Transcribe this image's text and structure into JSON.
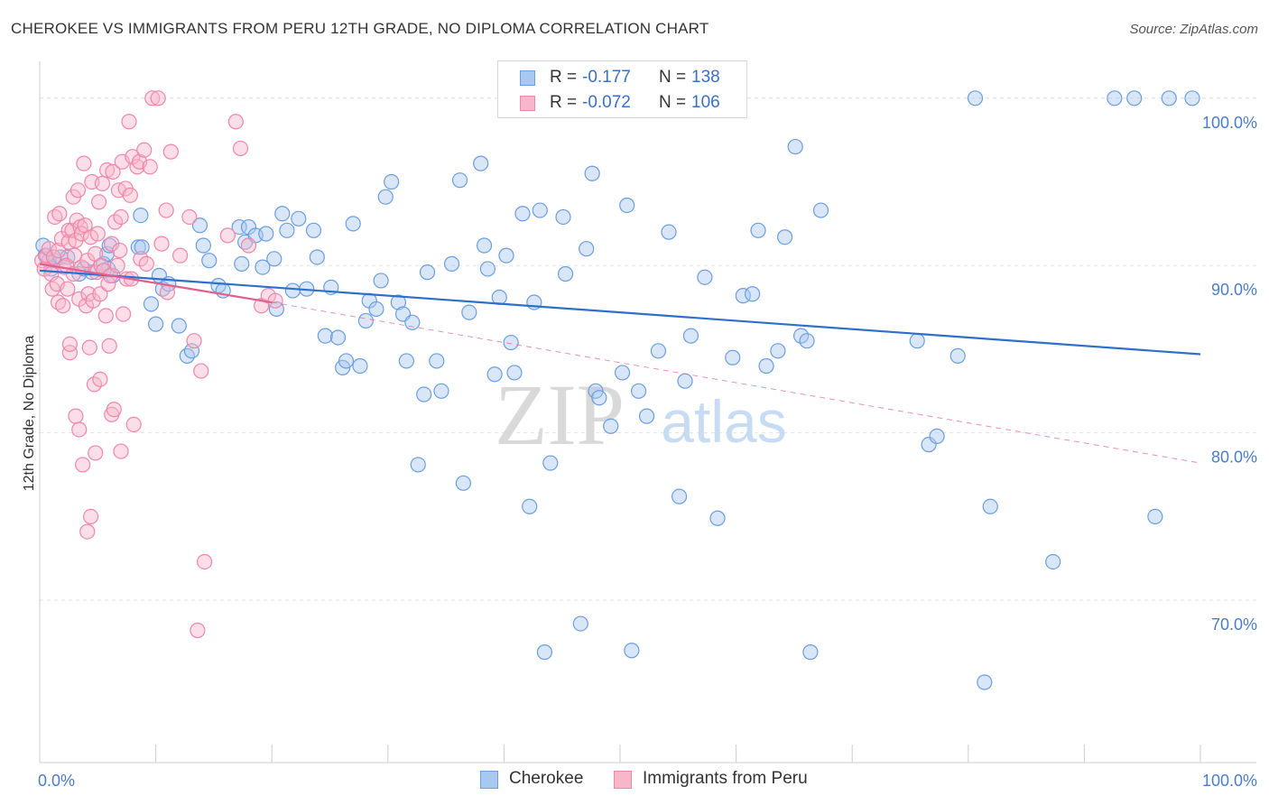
{
  "title": "CHEROKEE VS IMMIGRANTS FROM PERU 12TH GRADE, NO DIPLOMA CORRELATION CHART",
  "source": "Source: ZipAtlas.com",
  "watermark": {
    "zip": "ZIP",
    "atlas": "atlas"
  },
  "legend": {
    "rows": [
      {
        "r_label": "R =",
        "r_value": "-0.177",
        "n_label": "N =",
        "n_value": "138"
      },
      {
        "r_label": "R =",
        "r_value": "-0.072",
        "n_label": "N =",
        "n_value": "106"
      }
    ]
  },
  "bottom_legend": [
    "Cherokee",
    "Immigrants from Peru"
  ],
  "colors": {
    "cherokee_fill": "#a9c8f0",
    "cherokee_stroke": "#6a9ee0",
    "cherokee_line": "#2e6fcc",
    "peru_fill": "#f7b6ca",
    "peru_stroke": "#ef86a8",
    "peru_line": "#e0608d",
    "axis_text": "#4a7cc9",
    "grid": "#e3e3e3"
  },
  "chart_data": {
    "type": "scatter",
    "title": "CHEROKEE VS IMMIGRANTS FROM PERU 12TH GRADE, NO DIPLOMA CORRELATION CHART",
    "xlabel": "",
    "ylabel": "12th Grade, No Diploma",
    "xlim": [
      0,
      100
    ],
    "ylim": [
      60.3,
      102.2
    ],
    "x_tick_labels": [
      {
        "value": 0,
        "label": "0.0%"
      },
      {
        "value": 100,
        "label": "100.0%"
      }
    ],
    "y_ticks": [
      {
        "value": 70,
        "label": "70.0%"
      },
      {
        "value": 80,
        "label": "80.0%"
      },
      {
        "value": 90,
        "label": "90.0%"
      },
      {
        "value": 100,
        "label": "100.0%"
      }
    ],
    "series": [
      {
        "name": "Cherokee",
        "r": -0.177,
        "n": 138,
        "trend": {
          "x": [
            0,
            100
          ],
          "y": [
            89.7,
            84.7
          ]
        },
        "points": [
          [
            0.3,
            91.2
          ],
          [
            0.5,
            90.6
          ],
          [
            0.8,
            90.3
          ],
          [
            1.0,
            89.8
          ],
          [
            1.3,
            90.3
          ],
          [
            1.8,
            90.5
          ],
          [
            2.4,
            90.5
          ],
          [
            3.4,
            89.5
          ],
          [
            3.8,
            89.8
          ],
          [
            4.5,
            89.6
          ],
          [
            5.5,
            90.1
          ],
          [
            5.9,
            89.8
          ],
          [
            6.3,
            89.4
          ],
          [
            5.8,
            90.7
          ],
          [
            6.0,
            91.2
          ],
          [
            8.5,
            91.1
          ],
          [
            8.8,
            91.1
          ],
          [
            8.7,
            93.0
          ],
          [
            9.6,
            87.7
          ],
          [
            10.0,
            86.5
          ],
          [
            10.3,
            89.4
          ],
          [
            10.6,
            88.6
          ],
          [
            11.1,
            88.9
          ],
          [
            12.0,
            86.4
          ],
          [
            12.7,
            84.6
          ],
          [
            13.1,
            84.9
          ],
          [
            13.8,
            92.4
          ],
          [
            14.1,
            91.2
          ],
          [
            14.6,
            90.3
          ],
          [
            15.4,
            88.8
          ],
          [
            15.8,
            88.5
          ],
          [
            17.2,
            92.3
          ],
          [
            17.4,
            90.1
          ],
          [
            17.7,
            91.4
          ],
          [
            18.0,
            92.3
          ],
          [
            18.6,
            91.8
          ],
          [
            19.2,
            89.9
          ],
          [
            19.5,
            91.9
          ],
          [
            20.2,
            90.4
          ],
          [
            20.4,
            87.4
          ],
          [
            20.9,
            93.1
          ],
          [
            21.3,
            92.1
          ],
          [
            21.8,
            88.5
          ],
          [
            22.3,
            92.8
          ],
          [
            23.0,
            88.6
          ],
          [
            23.6,
            92.1
          ],
          [
            23.9,
            90.5
          ],
          [
            24.6,
            85.8
          ],
          [
            25.1,
            88.7
          ],
          [
            25.7,
            85.7
          ],
          [
            26.1,
            83.9
          ],
          [
            26.4,
            84.3
          ],
          [
            27.0,
            92.5
          ],
          [
            27.6,
            84.0
          ],
          [
            28.1,
            86.7
          ],
          [
            28.4,
            87.9
          ],
          [
            29.0,
            87.4
          ],
          [
            29.4,
            89.1
          ],
          [
            29.8,
            94.1
          ],
          [
            30.3,
            95.0
          ],
          [
            30.9,
            87.8
          ],
          [
            31.3,
            87.1
          ],
          [
            31.6,
            84.3
          ],
          [
            32.1,
            86.6
          ],
          [
            32.6,
            78.1
          ],
          [
            33.1,
            82.3
          ],
          [
            33.4,
            89.6
          ],
          [
            34.2,
            84.3
          ],
          [
            34.6,
            82.5
          ],
          [
            35.5,
            90.1
          ],
          [
            36.2,
            95.1
          ],
          [
            36.5,
            77.0
          ],
          [
            37.0,
            87.2
          ],
          [
            38.0,
            96.1
          ],
          [
            38.3,
            91.2
          ],
          [
            38.6,
            89.8
          ],
          [
            39.2,
            83.5
          ],
          [
            39.6,
            88.1
          ],
          [
            40.2,
            90.6
          ],
          [
            40.6,
            85.4
          ],
          [
            40.9,
            83.6
          ],
          [
            41.6,
            93.1
          ],
          [
            42.2,
            75.6
          ],
          [
            42.6,
            87.8
          ],
          [
            43.1,
            93.3
          ],
          [
            43.5,
            66.9
          ],
          [
            44.0,
            78.2
          ],
          [
            45.1,
            92.9
          ],
          [
            45.3,
            89.5
          ],
          [
            46.2,
            100.0
          ],
          [
            46.6,
            68.6
          ],
          [
            47.1,
            91.0
          ],
          [
            47.6,
            95.5
          ],
          [
            47.9,
            82.5
          ],
          [
            48.2,
            82.1
          ],
          [
            49.2,
            80.4
          ],
          [
            50.2,
            83.6
          ],
          [
            50.6,
            93.6
          ],
          [
            51.0,
            67.0
          ],
          [
            51.6,
            82.5
          ],
          [
            52.3,
            81.0
          ],
          [
            53.3,
            84.9
          ],
          [
            54.2,
            92.0
          ],
          [
            55.1,
            76.2
          ],
          [
            55.6,
            83.1
          ],
          [
            56.1,
            85.8
          ],
          [
            57.3,
            89.3
          ],
          [
            58.4,
            74.9
          ],
          [
            59.7,
            84.5
          ],
          [
            60.6,
            88.2
          ],
          [
            61.4,
            88.3
          ],
          [
            61.9,
            92.1
          ],
          [
            62.6,
            84.0
          ],
          [
            63.6,
            84.9
          ],
          [
            64.2,
            91.7
          ],
          [
            65.1,
            97.1
          ],
          [
            65.6,
            85.8
          ],
          [
            66.1,
            85.5
          ],
          [
            66.4,
            66.9
          ],
          [
            67.3,
            93.3
          ],
          [
            75.6,
            85.5
          ],
          [
            76.6,
            79.3
          ],
          [
            77.3,
            79.8
          ],
          [
            79.1,
            84.6
          ],
          [
            80.6,
            100.0
          ],
          [
            81.4,
            65.1
          ],
          [
            81.9,
            75.6
          ],
          [
            87.3,
            72.3
          ],
          [
            92.6,
            100.0
          ],
          [
            94.3,
            100.0
          ],
          [
            96.1,
            75.0
          ],
          [
            97.3,
            100.0
          ],
          [
            99.3,
            100.0
          ]
        ]
      },
      {
        "name": "Immigrants from Peru",
        "r": -0.072,
        "n": 106,
        "trend": {
          "x": [
            0,
            20
          ],
          "y": [
            90.1,
            87.8
          ]
        },
        "trend_dashed": {
          "x": [
            20,
            100
          ],
          "y": [
            87.8,
            78.2
          ]
        },
        "points": [
          [
            0.2,
            90.3
          ],
          [
            0.4,
            89.8
          ],
          [
            0.6,
            90.6
          ],
          [
            0.8,
            91.0
          ],
          [
            1.0,
            89.5
          ],
          [
            1.1,
            88.6
          ],
          [
            1.2,
            90.5
          ],
          [
            1.3,
            92.9
          ],
          [
            1.5,
            88.9
          ],
          [
            1.6,
            87.8
          ],
          [
            1.6,
            90.9
          ],
          [
            1.7,
            93.1
          ],
          [
            1.9,
            91.6
          ],
          [
            2.0,
            87.6
          ],
          [
            2.1,
            89.9
          ],
          [
            2.3,
            90.0
          ],
          [
            2.4,
            88.6
          ],
          [
            2.5,
            92.1
          ],
          [
            2.5,
            91.4
          ],
          [
            2.6,
            84.8
          ],
          [
            2.6,
            85.3
          ],
          [
            2.8,
            92.1
          ],
          [
            2.9,
            89.5
          ],
          [
            2.9,
            94.1
          ],
          [
            3.0,
            90.6
          ],
          [
            3.1,
            91.5
          ],
          [
            3.1,
            81.0
          ],
          [
            3.2,
            92.7
          ],
          [
            3.3,
            94.5
          ],
          [
            3.4,
            80.2
          ],
          [
            3.4,
            88.0
          ],
          [
            3.5,
            92.3
          ],
          [
            3.6,
            89.9
          ],
          [
            3.6,
            91.9
          ],
          [
            3.7,
            78.1
          ],
          [
            3.8,
            96.1
          ],
          [
            3.9,
            92.4
          ],
          [
            4.0,
            87.6
          ],
          [
            4.1,
            90.3
          ],
          [
            4.1,
            74.1
          ],
          [
            4.2,
            88.3
          ],
          [
            4.3,
            85.1
          ],
          [
            4.4,
            91.7
          ],
          [
            4.4,
            75.0
          ],
          [
            4.5,
            95.0
          ],
          [
            4.6,
            87.9
          ],
          [
            4.7,
            82.9
          ],
          [
            4.8,
            90.7
          ],
          [
            4.8,
            78.8
          ],
          [
            4.9,
            89.6
          ],
          [
            5.0,
            91.9
          ],
          [
            5.1,
            93.8
          ],
          [
            5.2,
            83.2
          ],
          [
            5.2,
            88.3
          ],
          [
            5.3,
            90.0
          ],
          [
            5.4,
            94.9
          ],
          [
            5.5,
            89.7
          ],
          [
            5.7,
            87.0
          ],
          [
            5.8,
            95.7
          ],
          [
            5.9,
            88.9
          ],
          [
            6.0,
            85.2
          ],
          [
            6.1,
            89.4
          ],
          [
            6.2,
            91.3
          ],
          [
            6.2,
            81.1
          ],
          [
            6.3,
            95.6
          ],
          [
            6.4,
            81.4
          ],
          [
            6.5,
            92.6
          ],
          [
            6.7,
            90.0
          ],
          [
            6.8,
            94.5
          ],
          [
            7.0,
            78.9
          ],
          [
            7.0,
            92.9
          ],
          [
            7.1,
            96.2
          ],
          [
            7.2,
            87.1
          ],
          [
            7.4,
            94.6
          ],
          [
            7.5,
            89.2
          ],
          [
            7.7,
            98.6
          ],
          [
            7.8,
            94.2
          ],
          [
            8.0,
            96.5
          ],
          [
            8.1,
            80.5
          ],
          [
            8.4,
            95.9
          ],
          [
            8.6,
            96.2
          ],
          [
            9.0,
            96.9
          ],
          [
            9.5,
            95.9
          ],
          [
            9.7,
            100.0
          ],
          [
            10.2,
            100.0
          ],
          [
            10.5,
            91.3
          ],
          [
            10.9,
            93.3
          ],
          [
            11.0,
            88.4
          ],
          [
            11.3,
            96.8
          ],
          [
            12.1,
            90.6
          ],
          [
            12.9,
            92.9
          ],
          [
            13.3,
            85.5
          ],
          [
            13.6,
            68.2
          ],
          [
            13.9,
            83.7
          ],
          [
            14.2,
            72.3
          ],
          [
            16.2,
            91.8
          ],
          [
            16.9,
            98.6
          ],
          [
            17.3,
            97.0
          ],
          [
            18.0,
            91.2
          ],
          [
            19.1,
            87.6
          ],
          [
            19.7,
            88.2
          ],
          [
            20.3,
            87.9
          ],
          [
            6.9,
            90.9
          ],
          [
            7.9,
            89.2
          ],
          [
            8.7,
            90.4
          ],
          [
            9.2,
            90.1
          ]
        ]
      }
    ]
  }
}
